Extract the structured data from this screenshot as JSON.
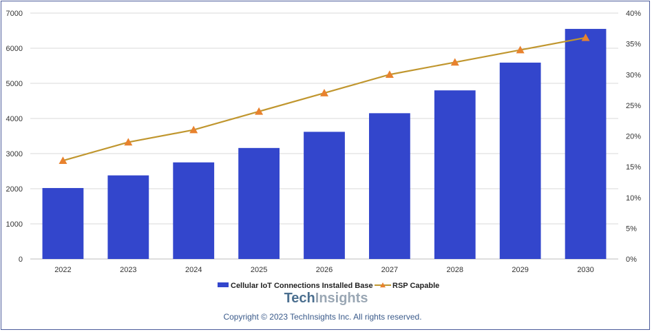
{
  "chart_data": {
    "type": "bar",
    "categories": [
      "2022",
      "2023",
      "2024",
      "2025",
      "2026",
      "2027",
      "2028",
      "2029",
      "2030"
    ],
    "series": [
      {
        "name": "Cellular IoT Connections Installed Base",
        "type": "bar",
        "axis": "left",
        "color": "#3346cc",
        "values": [
          2020,
          2380,
          2750,
          3160,
          3620,
          4150,
          4800,
          5590,
          6550
        ]
      },
      {
        "name": "RSP Capable",
        "type": "line",
        "axis": "right",
        "color": "#c0962e",
        "marker_color": "#e8822e",
        "values": [
          16,
          19,
          21,
          24,
          27,
          30,
          32,
          34,
          36
        ]
      }
    ],
    "y_left": {
      "min": 0,
      "max": 7000,
      "ticks": [
        "0",
        "1000",
        "2000",
        "3000",
        "4000",
        "5000",
        "6000",
        "7000"
      ]
    },
    "y_right": {
      "min": 0,
      "max": 40,
      "ticks": [
        "0%",
        "5%",
        "10%",
        "15%",
        "20%",
        "25%",
        "30%",
        "35%",
        "40%"
      ]
    },
    "grid": true,
    "legend_position": "bottom"
  },
  "brand": {
    "part1": "Tech",
    "part2": "Insights"
  },
  "copyright": "Copyright © 2023 TechInsights Inc.  All rights reserved."
}
